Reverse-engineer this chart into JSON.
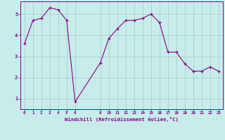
{
  "x": [
    0,
    1,
    2,
    3,
    4,
    5,
    6,
    9,
    10,
    11,
    12,
    13,
    14,
    15,
    16,
    17,
    18,
    19,
    20,
    21,
    22,
    23
  ],
  "y": [
    3.6,
    4.7,
    4.8,
    5.3,
    5.2,
    4.7,
    0.85,
    2.7,
    3.85,
    4.3,
    4.7,
    4.7,
    4.8,
    5.0,
    4.6,
    3.2,
    3.2,
    2.65,
    2.3,
    2.3,
    2.5,
    2.3
  ],
  "line_color": "#880088",
  "bg_color": "#c8ecea",
  "grid_color": "#a0d4d0",
  "xlabel": "Windchill (Refroidissement éolien,°C)",
  "xlabel_color": "#880088",
  "xticks": [
    0,
    1,
    2,
    3,
    4,
    5,
    6,
    9,
    10,
    11,
    12,
    13,
    14,
    15,
    16,
    17,
    18,
    19,
    20,
    21,
    22,
    23
  ],
  "yticks": [
    1,
    2,
    3,
    4,
    5
  ],
  "ylim": [
    0.5,
    5.6
  ],
  "xlim": [
    -0.5,
    23.5
  ],
  "tick_color": "#880088",
  "marker": "+"
}
